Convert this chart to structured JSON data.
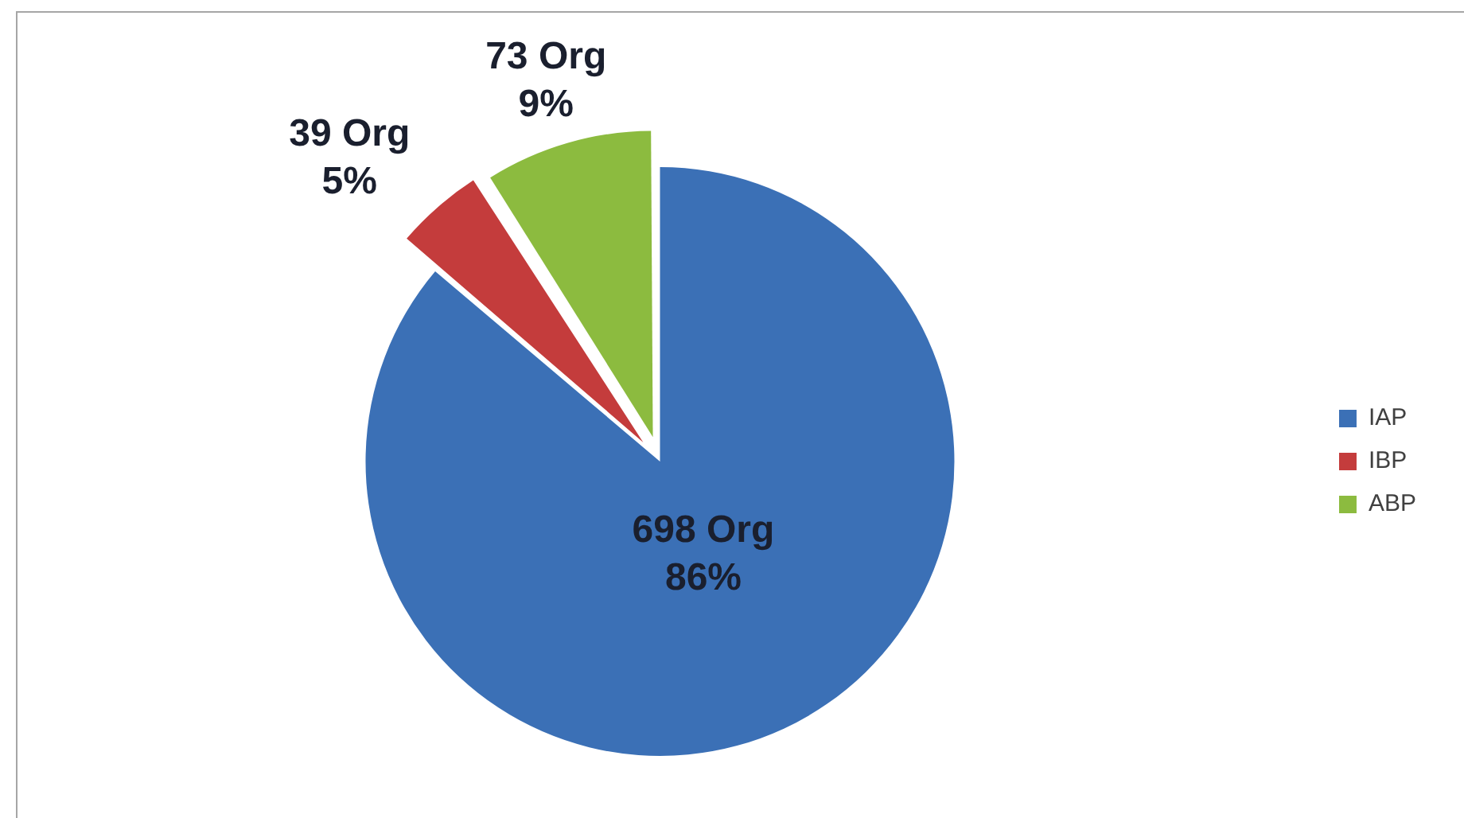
{
  "chart_data": {
    "type": "pie",
    "categories": [
      "IAP",
      "IBP",
      "ABP"
    ],
    "values": [
      698,
      39,
      73
    ],
    "colors": [
      "#3b70b6",
      "#c43c3c",
      "#8cbb3f"
    ],
    "value_labels": [
      "698 Org\n86%",
      "39 Org\n5%",
      "73 Org\n9%"
    ],
    "legend": "right"
  }
}
